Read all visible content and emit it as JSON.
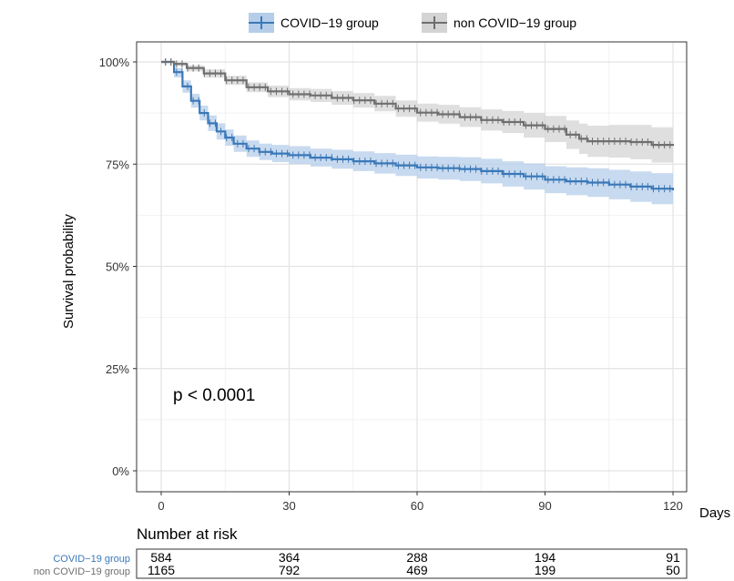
{
  "chart_data": {
    "type": "line",
    "subtype": "kaplan-meier",
    "title": "",
    "xlabel": "Days",
    "ylabel": "Survival probability",
    "xlim": [
      -3,
      126
    ],
    "ylim": [
      -0.02,
      1.05
    ],
    "x_ticks": [
      0,
      30,
      60,
      90,
      120
    ],
    "y_ticks": [
      {
        "value": 0,
        "label": "0%"
      },
      {
        "value": 0.25,
        "label": "25%"
      },
      {
        "value": 0.5,
        "label": "50%"
      },
      {
        "value": 0.75,
        "label": "75%"
      },
      {
        "value": 1.0,
        "label": "100%"
      }
    ],
    "grid": true,
    "legend_position": "top",
    "annotation": "p < 0.0001",
    "series": [
      {
        "name": "COVID−19 group",
        "color": "#3b78b8",
        "band_color": "#b5cde9",
        "x": [
          0,
          3,
          5,
          7,
          9,
          11,
          13,
          15,
          17,
          20,
          23,
          26,
          30,
          35,
          40,
          45,
          50,
          55,
          60,
          65,
          70,
          75,
          80,
          85,
          90,
          95,
          100,
          105,
          110,
          115,
          120
        ],
        "y": [
          1.0,
          0.975,
          0.94,
          0.905,
          0.875,
          0.85,
          0.83,
          0.815,
          0.8,
          0.788,
          0.78,
          0.776,
          0.772,
          0.766,
          0.762,
          0.757,
          0.752,
          0.747,
          0.742,
          0.74,
          0.738,
          0.733,
          0.726,
          0.72,
          0.712,
          0.708,
          0.705,
          0.7,
          0.695,
          0.69,
          0.686
        ],
        "lower": [
          1.0,
          0.962,
          0.925,
          0.888,
          0.857,
          0.831,
          0.81,
          0.795,
          0.78,
          0.768,
          0.76,
          0.755,
          0.75,
          0.744,
          0.739,
          0.733,
          0.727,
          0.721,
          0.715,
          0.712,
          0.709,
          0.703,
          0.695,
          0.688,
          0.679,
          0.674,
          0.67,
          0.664,
          0.658,
          0.652,
          0.647
        ],
        "upper": [
          1.0,
          0.985,
          0.955,
          0.922,
          0.893,
          0.869,
          0.85,
          0.835,
          0.82,
          0.808,
          0.8,
          0.797,
          0.794,
          0.788,
          0.785,
          0.781,
          0.777,
          0.773,
          0.769,
          0.768,
          0.767,
          0.763,
          0.757,
          0.752,
          0.745,
          0.742,
          0.74,
          0.736,
          0.732,
          0.728,
          0.725
        ]
      },
      {
        "name": "non COVID−19 group",
        "color": "#6f6f6f",
        "band_color": "#d4d4d4",
        "x": [
          0,
          3,
          6,
          10,
          15,
          20,
          25,
          30,
          35,
          40,
          45,
          50,
          55,
          60,
          65,
          70,
          75,
          80,
          85,
          90,
          95,
          98,
          100,
          105,
          110,
          115,
          120
        ],
        "y": [
          1.0,
          0.995,
          0.985,
          0.972,
          0.955,
          0.938,
          0.928,
          0.921,
          0.918,
          0.912,
          0.906,
          0.898,
          0.886,
          0.876,
          0.872,
          0.865,
          0.858,
          0.853,
          0.845,
          0.836,
          0.822,
          0.812,
          0.806,
          0.806,
          0.804,
          0.797,
          0.795
        ],
        "lower": [
          1.0,
          0.99,
          0.977,
          0.962,
          0.944,
          0.926,
          0.914,
          0.906,
          0.902,
          0.895,
          0.888,
          0.879,
          0.866,
          0.854,
          0.849,
          0.841,
          0.832,
          0.826,
          0.815,
          0.804,
          0.787,
          0.775,
          0.768,
          0.766,
          0.762,
          0.754,
          0.75
        ],
        "upper": [
          1.0,
          0.999,
          0.992,
          0.982,
          0.966,
          0.95,
          0.942,
          0.936,
          0.934,
          0.929,
          0.924,
          0.917,
          0.906,
          0.898,
          0.895,
          0.889,
          0.884,
          0.88,
          0.875,
          0.868,
          0.857,
          0.849,
          0.844,
          0.846,
          0.846,
          0.84,
          0.84
        ]
      }
    ],
    "risk_table": {
      "title": "Number at risk",
      "timepoints": [
        0,
        30,
        60,
        90,
        120
      ],
      "rows": [
        {
          "label": "COVID−19 group",
          "color": "#3b78b8",
          "values": [
            584,
            364,
            288,
            194,
            91
          ]
        },
        {
          "label": "non COVID−19 group",
          "color": "#6f6f6f",
          "values": [
            1165,
            792,
            469,
            199,
            50
          ]
        }
      ]
    }
  }
}
